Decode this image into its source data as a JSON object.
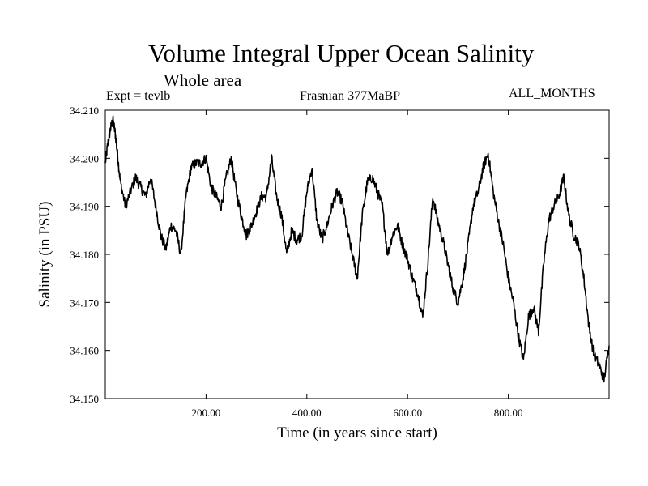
{
  "header": {
    "title": "Volume Integral Upper Ocean Salinity",
    "subtitle": "Whole area",
    "experiment": "Expt = tevlb",
    "period": "Frasnian 377MaBP",
    "months": "ALL_MONTHS"
  },
  "chart_data": {
    "type": "line",
    "title": "Volume Integral Upper Ocean Salinity",
    "xlabel": "Time (in years since start)",
    "ylabel": "Salinity (in PSU)",
    "xlim": [
      0,
      1000
    ],
    "ylim": [
      34.15,
      34.21
    ],
    "xticks": [
      200,
      400,
      600,
      800
    ],
    "xtick_labels": [
      "200.00",
      "400.00",
      "600.00",
      "800.00"
    ],
    "yticks": [
      34.15,
      34.16,
      34.17,
      34.18,
      34.19,
      34.2,
      34.21
    ],
    "ytick_labels": [
      "34.150",
      "34.160",
      "34.170",
      "34.180",
      "34.190",
      "34.200",
      "34.210"
    ],
    "grid": false,
    "series": [
      {
        "name": "Salinity",
        "x": [
          0,
          5,
          10,
          15,
          20,
          25,
          30,
          40,
          50,
          60,
          70,
          80,
          90,
          100,
          110,
          120,
          130,
          140,
          150,
          160,
          170,
          180,
          190,
          200,
          210,
          220,
          230,
          240,
          250,
          260,
          270,
          280,
          290,
          300,
          310,
          320,
          330,
          340,
          350,
          360,
          370,
          380,
          390,
          400,
          410,
          420,
          430,
          440,
          450,
          460,
          470,
          480,
          490,
          500,
          510,
          520,
          530,
          540,
          550,
          560,
          570,
          580,
          590,
          600,
          610,
          620,
          630,
          640,
          650,
          660,
          670,
          680,
          690,
          700,
          710,
          720,
          730,
          740,
          750,
          760,
          770,
          780,
          790,
          800,
          810,
          820,
          830,
          840,
          850,
          860,
          870,
          880,
          890,
          900,
          910,
          920,
          930,
          940,
          950,
          960,
          970,
          980,
          990,
          1000
        ],
        "values": [
          34.199,
          34.203,
          34.206,
          34.208,
          34.205,
          34.2,
          34.195,
          34.19,
          34.193,
          34.196,
          34.194,
          34.192,
          34.196,
          34.19,
          34.184,
          34.181,
          34.186,
          34.185,
          34.18,
          34.192,
          34.198,
          34.199,
          34.199,
          34.2,
          34.194,
          34.192,
          34.19,
          34.196,
          34.2,
          34.193,
          34.188,
          34.184,
          34.186,
          34.189,
          34.192,
          34.192,
          34.2,
          34.192,
          34.188,
          34.18,
          34.185,
          34.183,
          34.184,
          34.193,
          34.198,
          34.187,
          34.183,
          34.186,
          34.19,
          34.193,
          34.191,
          34.185,
          34.18,
          34.175,
          34.188,
          34.195,
          34.196,
          34.193,
          34.19,
          34.18,
          34.184,
          34.186,
          34.182,
          34.179,
          34.175,
          34.172,
          34.167,
          34.178,
          34.192,
          34.187,
          34.183,
          34.178,
          34.173,
          34.17,
          34.175,
          34.182,
          34.19,
          34.193,
          34.198,
          34.201,
          34.193,
          34.187,
          34.182,
          34.175,
          34.17,
          34.163,
          34.158,
          34.167,
          34.169,
          34.164,
          34.178,
          34.187,
          34.19,
          34.192,
          34.196,
          34.188,
          34.184,
          34.182,
          34.175,
          34.165,
          34.159,
          34.157,
          34.154,
          34.161
        ]
      }
    ]
  }
}
